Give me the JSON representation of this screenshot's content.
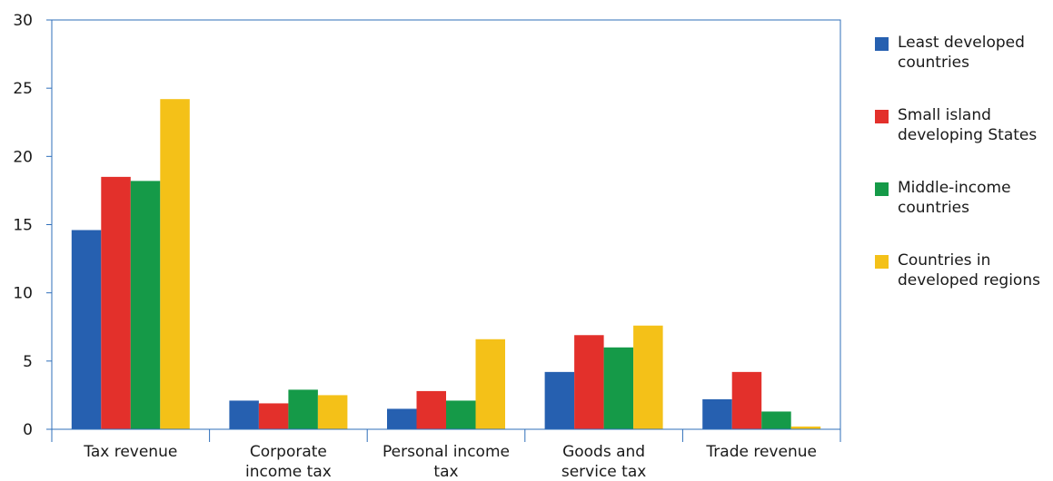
{
  "chart_data": {
    "type": "bar",
    "title": "",
    "xlabel": "",
    "ylabel": "",
    "ylim": [
      0,
      30
    ],
    "yticks": [
      0,
      5,
      10,
      15,
      20,
      25,
      30
    ],
    "grid": false,
    "legend_position": "right",
    "categories": [
      [
        "Tax revenue"
      ],
      [
        "Corporate",
        "income tax"
      ],
      [
        "Personal income",
        "tax"
      ],
      [
        "Goods and",
        "service tax"
      ],
      [
        "Trade revenue"
      ]
    ],
    "series": [
      {
        "name": "Least developed countries",
        "legend_lines": [
          "Least developed",
          "countries"
        ],
        "color": "#2660b0",
        "values": [
          14.6,
          2.1,
          1.5,
          4.2,
          2.2
        ]
      },
      {
        "name": "Small island developing States",
        "legend_lines": [
          "Small island",
          "developing States"
        ],
        "color": "#e3302b",
        "values": [
          18.5,
          1.9,
          2.8,
          6.9,
          4.2
        ]
      },
      {
        "name": "Middle-income countries",
        "legend_lines": [
          "Middle-income",
          "countries"
        ],
        "color": "#159a48",
        "values": [
          18.2,
          2.9,
          2.1,
          6.0,
          1.3
        ]
      },
      {
        "name": "Countries in developed regions",
        "legend_lines": [
          "Countries in",
          "developed regions"
        ],
        "color": "#f4c118",
        "values": [
          24.2,
          2.5,
          6.6,
          7.6,
          0.2
        ]
      }
    ],
    "axis_color": "#2f6fba"
  }
}
